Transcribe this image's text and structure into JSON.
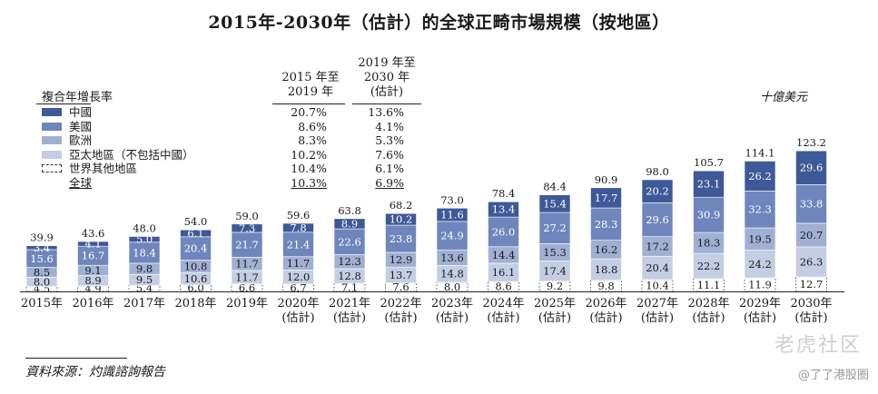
{
  "chart_data": {
    "type": "bar",
    "stacked": true,
    "title": "2015年-2030年（估計）的全球正畸市場規模（按地區）",
    "unit": "十億美元",
    "categories": [
      [
        "2015年"
      ],
      [
        "2016年"
      ],
      [
        "2017年"
      ],
      [
        "2018年"
      ],
      [
        "2019年"
      ],
      [
        "2020年",
        "(估計)"
      ],
      [
        "2021年",
        "(估計)"
      ],
      [
        "2022年",
        "(估計)"
      ],
      [
        "2023年",
        "(估計)"
      ],
      [
        "2024年",
        "(估計)"
      ],
      [
        "2025年",
        "(估計)"
      ],
      [
        "2026年",
        "(估計)"
      ],
      [
        "2027年",
        "(估計)"
      ],
      [
        "2028年",
        "(估計)"
      ],
      [
        "2029年",
        "(估計)"
      ],
      [
        "2030年",
        "(估計)"
      ]
    ],
    "series": [
      {
        "name": "世界其他地區",
        "color": "#ffffff",
        "values": [
          4.5,
          4.9,
          5.4,
          6.0,
          6.6,
          6.7,
          7.1,
          7.6,
          8.0,
          8.6,
          9.2,
          9.8,
          10.4,
          11.1,
          11.9,
          12.7
        ]
      },
      {
        "name": "亞太地區（不包括中國）",
        "color": "#c3cee4",
        "values": [
          8.0,
          8.9,
          9.5,
          10.6,
          11.7,
          12.0,
          12.8,
          13.7,
          14.8,
          16.1,
          17.4,
          18.8,
          20.4,
          22.2,
          24.2,
          26.3
        ]
      },
      {
        "name": "歐洲",
        "color": "#a0b0d2",
        "values": [
          8.5,
          9.1,
          9.8,
          10.8,
          11.7,
          11.7,
          12.3,
          12.9,
          13.6,
          14.4,
          15.3,
          16.2,
          17.2,
          18.3,
          19.5,
          20.7
        ]
      },
      {
        "name": "美國",
        "color": "#6e86bc",
        "values": [
          15.6,
          16.7,
          18.4,
          20.4,
          21.7,
          21.4,
          22.6,
          23.8,
          24.9,
          26.0,
          27.2,
          28.3,
          29.6,
          30.9,
          32.3,
          33.8
        ]
      },
      {
        "name": "中國",
        "color": "#3e5997",
        "values": [
          3.4,
          4.1,
          5.0,
          6.1,
          7.3,
          7.8,
          8.9,
          10.2,
          11.6,
          13.4,
          15.4,
          17.7,
          20.2,
          23.1,
          26.2,
          29.6
        ]
      }
    ],
    "totals": [
      39.9,
      43.6,
      48.0,
      54.0,
      59.0,
      59.6,
      63.8,
      68.2,
      73.0,
      78.4,
      84.4,
      90.9,
      98.0,
      105.7,
      114.1,
      123.2
    ],
    "ylim": [
      0,
      123.2
    ]
  },
  "legend": {
    "heading": "複合年增長率",
    "col1_header": [
      "2015 年至",
      "2019 年"
    ],
    "col2_header": [
      "2019 年至",
      "2030 年",
      "(估計)"
    ],
    "rows": [
      {
        "name": "中國",
        "color": "#3e5997",
        "cagr_1": "20.7%",
        "cagr_2": "13.6%"
      },
      {
        "name": "美國",
        "color": "#6e86bc",
        "cagr_1": "8.6%",
        "cagr_2": "4.1%"
      },
      {
        "name": "歐洲",
        "color": "#a0b0d2",
        "cagr_1": "8.3%",
        "cagr_2": "5.3%"
      },
      {
        "name": "亞太地區（不包括中國）",
        "color": "#c3cee4",
        "cagr_1": "10.2%",
        "cagr_2": "7.6%"
      },
      {
        "name": "世界其他地區",
        "color": "#ffffff",
        "cagr_1": "10.4%",
        "cagr_2": "6.1%"
      },
      {
        "name": "全球",
        "color": "",
        "cagr_1": "10.3%",
        "cagr_2": "6.9%"
      }
    ]
  },
  "source": "資料來源：灼識諮詢報告",
  "watermark": "老虎社区",
  "watermark_2": "@了了港股圈"
}
